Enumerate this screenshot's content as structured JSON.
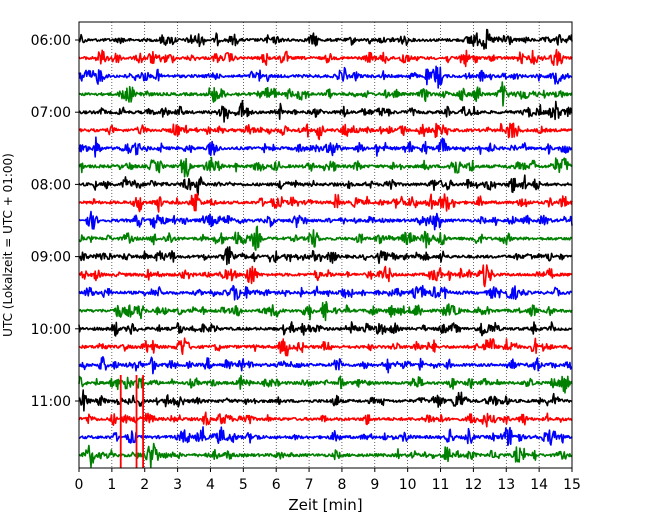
{
  "chart_data": {
    "type": "line",
    "title": "",
    "xlabel": "Zeit  [min]",
    "ylabel": "UTC (Lokalzeit = UTC + 01:00)",
    "xlim": [
      0,
      15
    ],
    "ylim": [
      0,
      24
    ],
    "x_ticks": [
      "0",
      "1",
      "2",
      "3",
      "4",
      "5",
      "6",
      "7",
      "8",
      "9",
      "10",
      "11",
      "12",
      "13",
      "14",
      "15"
    ],
    "y_ticks": [
      {
        "label": "06:00",
        "trace": 0
      },
      {
        "label": "07:00",
        "trace": 4
      },
      {
        "label": "08:00",
        "trace": 8
      },
      {
        "label": "09:00",
        "trace": 12
      },
      {
        "label": "10:00",
        "trace": 16
      },
      {
        "label": "11:00",
        "trace": 20
      }
    ],
    "grid": "vertical dotted",
    "trace_interval_min": 15,
    "series_colors": [
      "#000000",
      "#ff0000",
      "#0000ff",
      "#008000"
    ],
    "traces": [
      {
        "start": "06:00",
        "color": "#000000"
      },
      {
        "start": "06:15",
        "color": "#ff0000"
      },
      {
        "start": "06:30",
        "color": "#0000ff"
      },
      {
        "start": "06:45",
        "color": "#008000"
      },
      {
        "start": "07:00",
        "color": "#000000"
      },
      {
        "start": "07:15",
        "color": "#ff0000"
      },
      {
        "start": "07:30",
        "color": "#0000ff"
      },
      {
        "start": "07:45",
        "color": "#008000"
      },
      {
        "start": "08:00",
        "color": "#000000"
      },
      {
        "start": "08:15",
        "color": "#ff0000"
      },
      {
        "start": "08:30",
        "color": "#0000ff"
      },
      {
        "start": "08:45",
        "color": "#008000"
      },
      {
        "start": "09:00",
        "color": "#000000"
      },
      {
        "start": "09:15",
        "color": "#ff0000"
      },
      {
        "start": "09:30",
        "color": "#0000ff"
      },
      {
        "start": "09:45",
        "color": "#008000"
      },
      {
        "start": "10:00",
        "color": "#000000"
      },
      {
        "start": "10:15",
        "color": "#ff0000"
      },
      {
        "start": "10:30",
        "color": "#0000ff"
      },
      {
        "start": "10:45",
        "color": "#008000"
      },
      {
        "start": "11:00",
        "color": "#000000"
      },
      {
        "start": "11:15",
        "color": "#ff0000"
      },
      {
        "start": "11:30",
        "color": "#0000ff"
      },
      {
        "start": "11:45",
        "color": "#008000"
      }
    ],
    "events": [
      {
        "trace": 21,
        "x": 1.27
      },
      {
        "trace": 21,
        "x": 1.75
      },
      {
        "trace": 21,
        "x": 1.95
      }
    ]
  }
}
